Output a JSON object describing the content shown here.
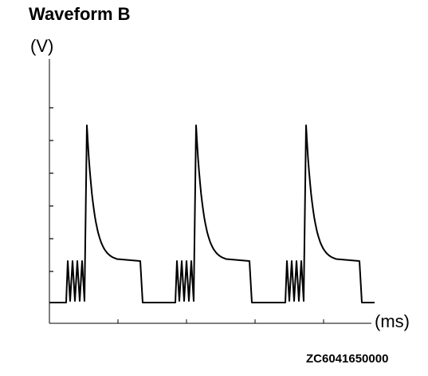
{
  "title": "Waveform B",
  "y_unit_label": "(V)",
  "x_unit_label": "(ms)",
  "figure_code": "ZC6041650000"
}
